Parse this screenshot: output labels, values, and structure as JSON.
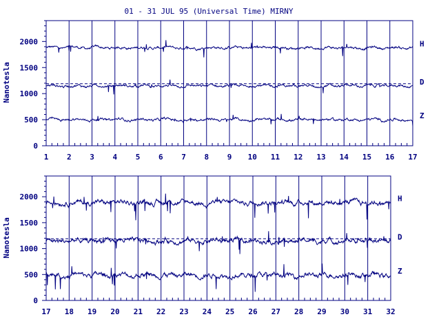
{
  "chart_data": [
    {
      "type": "line",
      "title": "01 - 31 JUL 95 (Universal Time) MIRNY",
      "ylabel": "Nanotesla",
      "xlabel": "",
      "xlim": [
        1,
        17
      ],
      "ylim": [
        0,
        2400
      ],
      "x_ticks": [
        "1",
        "2",
        "3",
        "4",
        "5",
        "6",
        "7",
        "8",
        "9",
        "10",
        "11",
        "12",
        "13",
        "14",
        "15",
        "16",
        "17"
      ],
      "y_ticks": [
        "0",
        "500",
        "1000",
        "1500",
        "2000"
      ],
      "grid": "vertical lines at each day",
      "series": [
        {
          "name": "H",
          "baseline": 1880,
          "color": "#000080"
        },
        {
          "name": "D",
          "baseline": 1150,
          "reference_dashed": 1190,
          "color": "#000080"
        },
        {
          "name": "Z",
          "baseline": 500,
          "color": "#000080"
        }
      ]
    },
    {
      "type": "line",
      "title": "",
      "ylabel": "Nanotesla",
      "xlabel": "",
      "xlim": [
        17,
        32
      ],
      "ylim": [
        0,
        2400
      ],
      "x_ticks": [
        "17",
        "18",
        "19",
        "20",
        "21",
        "22",
        "23",
        "24",
        "25",
        "26",
        "27",
        "28",
        "29",
        "30",
        "31",
        "32"
      ],
      "y_ticks": [
        "0",
        "500",
        "1000",
        "1500",
        "2000"
      ],
      "grid": "vertical lines at each day",
      "series": [
        {
          "name": "H",
          "baseline": 1890,
          "color": "#000080"
        },
        {
          "name": "D",
          "baseline": 1150,
          "reference_dashed": 1190,
          "color": "#000080"
        },
        {
          "name": "Z",
          "baseline": 490,
          "color": "#000080"
        }
      ]
    }
  ]
}
